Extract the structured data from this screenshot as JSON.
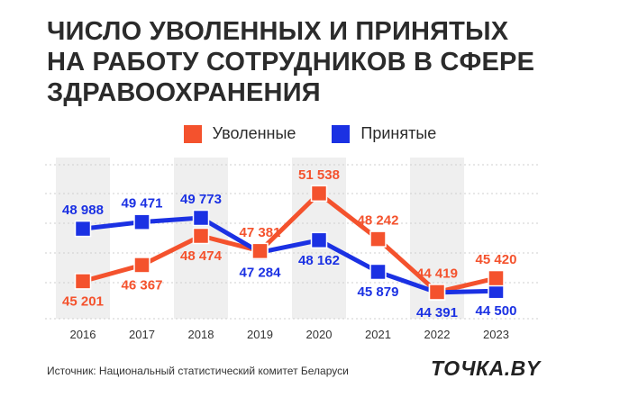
{
  "title": "ЧИСЛО УВОЛЕННЫХ И ПРИНЯТЫХ\nНА РАБОТУ СОТРУДНИКОВ В СФЕРЕ\nЗДРАВООХРАНЕНИЯ",
  "source": "Источник: Национальный статистический комитет Беларуси",
  "logo": "ТОЧКА.BY",
  "colors": {
    "dismissed": "#f4522d",
    "hired": "#1b31e3",
    "band": "#efefef",
    "grid": "#cfcfcf"
  },
  "chart_data": {
    "type": "line",
    "title": "Число уволенных и принятых на работу сотрудников в сфере здравоохранения",
    "categories": [
      "2016",
      "2017",
      "2018",
      "2019",
      "2020",
      "2021",
      "2022",
      "2023"
    ],
    "series": [
      {
        "name": "Уволенные",
        "key": "dismissed",
        "values": [
          45201,
          46367,
          48474,
          47381,
          51538,
          48242,
          44419,
          45420
        ],
        "labels": [
          "45 201",
          "46 367",
          "48 474",
          "47 381",
          "51 538",
          "48 242",
          "44 419",
          "45 420"
        ],
        "label_pos": [
          "below",
          "below",
          "below",
          "above",
          "above",
          "above",
          "above",
          "above"
        ]
      },
      {
        "name": "Принятые",
        "key": "hired",
        "values": [
          48988,
          49471,
          49773,
          47284,
          48162,
          45879,
          44391,
          44500
        ],
        "labels": [
          "48 988",
          "49 471",
          "49 773",
          "47 284",
          "48 162",
          "45 879",
          "44 391",
          "44 500"
        ],
        "label_pos": [
          "above",
          "above",
          "above",
          "below",
          "below",
          "below",
          "below",
          "below"
        ]
      }
    ],
    "shaded_categories": [
      "2016",
      "2018",
      "2020",
      "2022"
    ],
    "ylim": [
      42500,
      53800
    ],
    "grid": true,
    "legend": "top-center"
  }
}
